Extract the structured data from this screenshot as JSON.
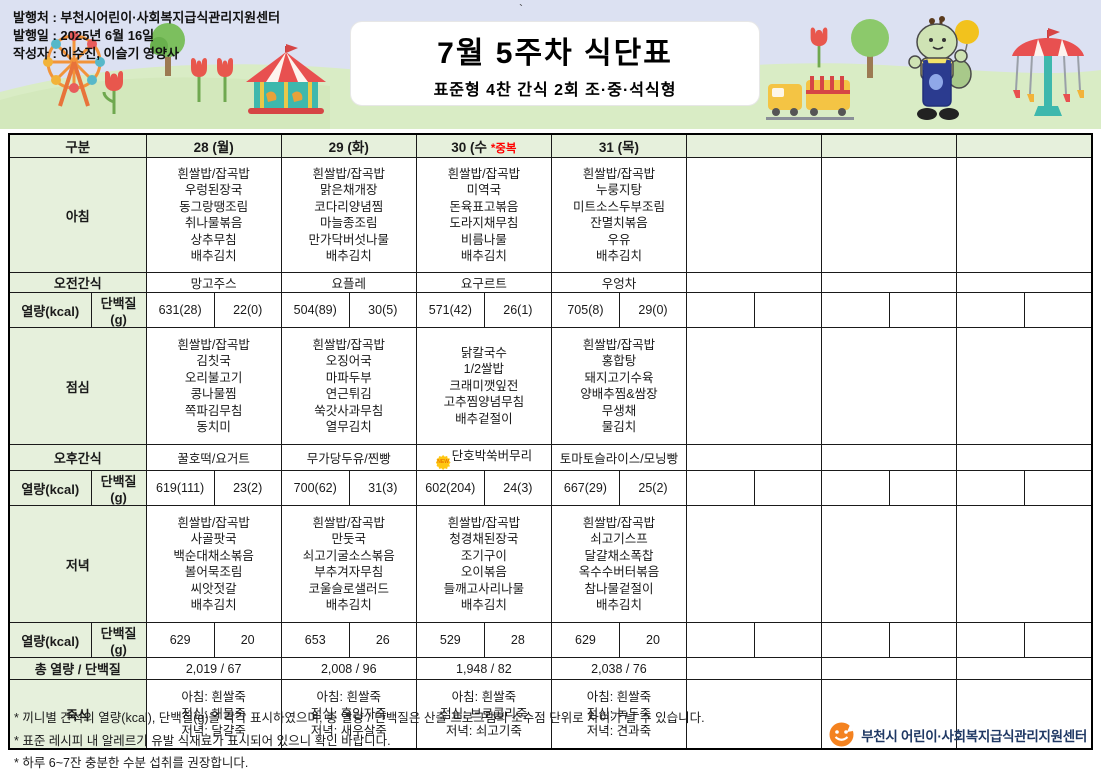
{
  "meta": {
    "publisher_line": "발행처 : 부천시어린이·사회복지급식관리지원센터",
    "date_line": "발행일 : 2025년 6월 16일",
    "author_line": "작성자 : 이수진, 이슬기 영양사",
    "stray_mark": "`"
  },
  "title": {
    "main": "7월 5주차 식단표",
    "sub": "표준형 4찬 간식 2회 조·중·석식형"
  },
  "colors": {
    "header_green": "#e6f0dc",
    "banner_sky": "#dce1f2",
    "banner_grass": "#d9ecc5",
    "duplicate_red": "#ff0000",
    "logo_navy": "#1f3864",
    "logo_orange": "#f4821f",
    "new_badge_yellow": "#ffc712"
  },
  "table": {
    "corner": "구분",
    "labels": {
      "breakfast": "아침",
      "am_snack": "오전간식",
      "kcal": "열량(kcal)",
      "protein": "단백질(g)",
      "lunch": "점심",
      "pm_snack": "오후간식",
      "dinner": "저녁",
      "total": "총 열량 / 단백질",
      "porridge": "죽식"
    },
    "days": [
      {
        "header": "28 (월)",
        "badge": "",
        "breakfast": [
          "흰쌀밥/잡곡밥",
          "우렁된장국",
          "동그랑땡조림",
          "취나물볶음",
          "상추무침",
          "배추김치"
        ],
        "am_snack": "망고주스",
        "kcal1": [
          "631(28)",
          "22(0)"
        ],
        "lunch": [
          "흰쌀밥/잡곡밥",
          "김칫국",
          "오리불고기",
          "콩나물찜",
          "쪽파김무침",
          "동치미"
        ],
        "pm_snack": "꿀호떡/요거트",
        "pm_new": false,
        "kcal2": [
          "619(111)",
          "23(2)"
        ],
        "dinner": [
          "흰쌀밥/잡곡밥",
          "사골팟국",
          "백순대채소볶음",
          "볼어묵조림",
          "씨앗젓갈",
          "배추김치"
        ],
        "kcal3": [
          "629",
          "20"
        ],
        "total": "2,019 / 67",
        "porridge": [
          "아침: 흰쌀죽",
          "점심: 해물죽",
          "저녁: 달걀죽"
        ]
      },
      {
        "header": "29 (화)",
        "badge": "",
        "breakfast": [
          "흰쌀밥/잡곡밥",
          "맑은채개장",
          "코다리양념찜",
          "마늘종조림",
          "만가닥버섯나물",
          "배추김치"
        ],
        "am_snack": "요플레",
        "kcal1": [
          "504(89)",
          "30(5)"
        ],
        "lunch": [
          "흰쌀밥/잡곡밥",
          "오징어국",
          "마파두부",
          "연근튀김",
          "쑥갓사과무침",
          "열무김치"
        ],
        "pm_snack": "무가당두유/찐빵",
        "pm_new": false,
        "kcal2": [
          "700(62)",
          "31(3)"
        ],
        "dinner": [
          "흰쌀밥/잡곡밥",
          "만둣국",
          "쇠고기굴소스볶음",
          "부추겨자무침",
          "코울슬로샐러드",
          "배추김치"
        ],
        "kcal3": [
          "653",
          "26"
        ],
        "total": "2,008 / 96",
        "porridge": [
          "아침: 흰쌀죽",
          "점심: 흑임자죽",
          "저녁: 새우살죽"
        ]
      },
      {
        "header": "30 (수",
        "badge": "*중복",
        "breakfast": [
          "흰쌀밥/잡곡밥",
          "미역국",
          "돈육표고볶음",
          "도라지채무침",
          "비름나물",
          "배추김치"
        ],
        "am_snack": "요구르트",
        "kcal1": [
          "571(42)",
          "26(1)"
        ],
        "lunch": [
          "닭칼국수",
          "1/2쌀밥",
          "크래미깻잎전",
          "고추찜양념무침",
          "배추겉절이"
        ],
        "pm_snack": "단호박쑥버무리",
        "pm_new": true,
        "kcal2": [
          "602(204)",
          "24(3)"
        ],
        "dinner": [
          "흰쌀밥/잡곡밥",
          "청경채된장국",
          "조기구이",
          "오이볶음",
          "들깨고사리나물",
          "배추김치"
        ],
        "kcal3": [
          "529",
          "28"
        ],
        "total": "1,948 / 82",
        "porridge": [
          "아침: 흰쌀죽",
          "점심: 브로콜리죽",
          "저녁: 쇠고기죽"
        ]
      },
      {
        "header": "31 (목)",
        "badge": "",
        "breakfast": [
          "흰쌀밥/잡곡밥",
          "누룽지탕",
          "미트소스두부조림",
          "잔멸치볶음",
          "우유",
          "배추김치"
        ],
        "am_snack": "우엉차",
        "kcal1": [
          "705(8)",
          "29(0)"
        ],
        "lunch": [
          "흰쌀밥/잡곡밥",
          "홍합탕",
          "돼지고기수육",
          "양배추찜&쌈장",
          "무생채",
          "물김치"
        ],
        "pm_snack": "토마토슬라이스/모닝빵",
        "pm_new": false,
        "kcal2": [
          "667(29)",
          "25(2)"
        ],
        "dinner": [
          "흰쌀밥/잡곡밥",
          "쇠고기스프",
          "달걀채소폭찹",
          "옥수수버터볶음",
          "참나물겉절이",
          "배추김치"
        ],
        "kcal3": [
          "629",
          "20"
        ],
        "total": "2,038 / 76",
        "porridge": [
          "아침: 흰쌀죽",
          "점심: 녹두죽",
          "저녁: 견과죽"
        ]
      },
      {
        "header": "",
        "badge": "",
        "breakfast": [],
        "am_snack": "",
        "kcal1": [
          "",
          ""
        ],
        "lunch": [],
        "pm_snack": "",
        "pm_new": false,
        "kcal2": [
          "",
          ""
        ],
        "dinner": [],
        "kcal3": [
          "",
          ""
        ],
        "total": "",
        "porridge": []
      },
      {
        "header": "",
        "badge": "",
        "breakfast": [],
        "am_snack": "",
        "kcal1": [
          "",
          ""
        ],
        "lunch": [],
        "pm_snack": "",
        "pm_new": false,
        "kcal2": [
          "",
          ""
        ],
        "dinner": [],
        "kcal3": [
          "",
          ""
        ],
        "total": "",
        "porridge": []
      },
      {
        "header": "",
        "badge": "",
        "breakfast": [],
        "am_snack": "",
        "kcal1": [
          "",
          ""
        ],
        "lunch": [],
        "pm_snack": "",
        "pm_new": false,
        "kcal2": [
          "",
          ""
        ],
        "dinner": [],
        "kcal3": [
          "",
          ""
        ],
        "total": "",
        "porridge": []
      }
    ]
  },
  "new_badge_text": "NEW",
  "notes": [
    "* 끼니별 간식의 열량(kcal), 단백질(g)을 각각 표시하였으며, 총 열량 / 단백질은 산출 프로그램의 소수점 단위로 차이가 날 수 있습니다.",
    "* 표준 레시피 내 알레르기 유발 식재료가 표시되어 있으니 확인 바랍니다.",
    "* 하루 6~7잔 충분한 수분 섭취를 권장합니다."
  ],
  "footer_logo_text": "부천시 어린이·사회복지급식관리지원센터"
}
